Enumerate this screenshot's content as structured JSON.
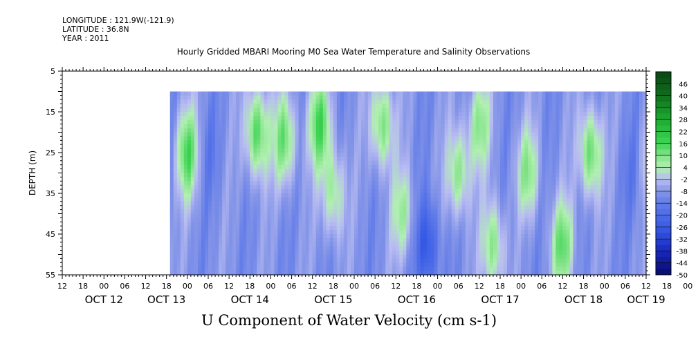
{
  "header": {
    "longitude": "LONGITUDE : 121.9W(-121.9)",
    "latitude": "LATITUDE : 36.8N",
    "year": "YEAR : 2011"
  },
  "chart_data": {
    "type": "heatmap",
    "title": "Hourly Gridded MBARI Mooring M0 Sea Water Temperature and Salinity Observations",
    "xlabel": "U Component of Water Velocity (cm s-1)",
    "ylabel": "DEPTH (m)",
    "x_range_hours": [
      -12,
      156
    ],
    "x_start_label": "OCT 12 12:00",
    "data_start_hour": 19,
    "ylim": [
      55,
      5
    ],
    "data_depth_range": [
      10,
      55
    ],
    "yticks": [
      5,
      15,
      25,
      35,
      45,
      55
    ],
    "hour_tick_labels": [
      "12",
      "18",
      "00",
      "06",
      "12",
      "18",
      "00",
      "06",
      "12",
      "18",
      "00",
      "06",
      "12",
      "18",
      "00",
      "06",
      "12",
      "18",
      "00",
      "06",
      "12",
      "18",
      "00",
      "06",
      "12",
      "18",
      "00",
      "06",
      "12",
      "18",
      "00",
      "06",
      "12"
    ],
    "day_labels": [
      {
        "label": "OCT 12",
        "hour": 0
      },
      {
        "label": "OCT 13",
        "hour": 18
      },
      {
        "label": "OCT 14",
        "hour": 42
      },
      {
        "label": "OCT 15",
        "hour": 66
      },
      {
        "label": "OCT 16",
        "hour": 90
      },
      {
        "label": "OCT 17",
        "hour": 114
      },
      {
        "label": "OCT 18",
        "hour": 138
      },
      {
        "label": "OCT 19",
        "hour": 156
      }
    ],
    "colorbar_levels": [
      46,
      40,
      34,
      28,
      22,
      16,
      10,
      4,
      -2,
      -8,
      -14,
      -20,
      -26,
      -32,
      -38,
      -44,
      -50
    ],
    "colorbar_range": [
      -50,
      52
    ],
    "grid": false,
    "features": [
      {
        "hour": 24,
        "depth": 25,
        "value": 14
      },
      {
        "hour": 44,
        "depth": 20,
        "value": 16
      },
      {
        "hour": 52,
        "depth": 22,
        "value": 12
      },
      {
        "hour": 62,
        "depth": 18,
        "value": 14
      },
      {
        "hour": 66,
        "depth": 35,
        "value": 8
      },
      {
        "hour": 80,
        "depth": 18,
        "value": 12
      },
      {
        "hour": 86,
        "depth": 40,
        "value": 6
      },
      {
        "hour": 102,
        "depth": 30,
        "value": 10
      },
      {
        "hour": 108,
        "depth": 18,
        "value": 8
      },
      {
        "hour": 112,
        "depth": 48,
        "value": 10
      },
      {
        "hour": 122,
        "depth": 30,
        "value": 8
      },
      {
        "hour": 132,
        "depth": 48,
        "value": 12
      },
      {
        "hour": 140,
        "depth": 25,
        "value": 14
      },
      {
        "hour": 158,
        "depth": 28,
        "value": 8
      },
      {
        "hour": 93,
        "depth": 48,
        "value": -28
      },
      {
        "hour": 120,
        "depth": 45,
        "value": -10
      },
      {
        "hour": 30,
        "depth": 25,
        "value": -14
      },
      {
        "hour": 152,
        "depth": 30,
        "value": -14
      }
    ]
  },
  "colors": {
    "strong_positive": "#0a4a14",
    "positive": "#22cc44",
    "light_positive": "#aaf0aa",
    "light_negative": "#b8bcf2",
    "negative": "#5070e8",
    "strong_negative": "#080a6a"
  }
}
